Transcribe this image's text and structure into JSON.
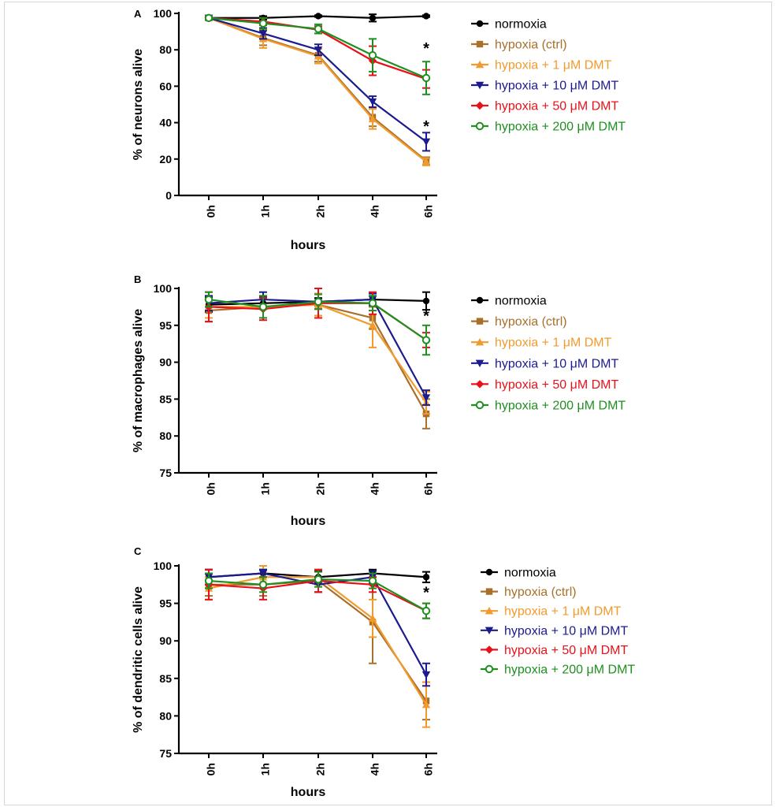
{
  "chart_data": [
    {
      "type": "line",
      "panel_label": "A",
      "ylabel": "% of neurons alive",
      "xlabel": "hours",
      "categories": [
        "0h",
        "1h",
        "2h",
        "4h",
        "6h"
      ],
      "ylim": [
        0,
        100
      ],
      "yticks": [
        0,
        20,
        40,
        60,
        80,
        100
      ],
      "series": [
        {
          "name": "normoxia",
          "color": "#000000",
          "marker": "circle",
          "values": [
            97.5,
            97.5,
            98.5,
            97.5,
            98.5
          ],
          "errors": [
            1.0,
            1.0,
            0.5,
            2.0,
            0.5
          ]
        },
        {
          "name": "hypoxia (ctrl)",
          "color": "#a8702a",
          "marker": "square",
          "values": [
            97.5,
            86.5,
            77.0,
            43.0,
            19.0
          ],
          "errors": [
            1.0,
            4.0,
            3.5,
            5.0,
            2.0
          ]
        },
        {
          "name": "hypoxia + 1 μM DMT",
          "color": "#f39a2c",
          "marker": "triangle-up",
          "values": [
            97.5,
            86.0,
            76.5,
            42.0,
            18.5
          ],
          "errors": [
            1.0,
            5.0,
            4.0,
            5.5,
            2.0
          ]
        },
        {
          "name": "hypoxia + 10 μM DMT",
          "color": "#1b1b8f",
          "marker": "triangle-down",
          "values": [
            97.5,
            89.0,
            80.0,
            51.5,
            29.5
          ],
          "errors": [
            1.0,
            3.0,
            3.0,
            3.0,
            5.0
          ]
        },
        {
          "name": "hypoxia + 50 μM DMT",
          "color": "#e8111a",
          "marker": "diamond",
          "values": [
            97.5,
            95.5,
            91.0,
            74.0,
            64.0
          ],
          "errors": [
            1.0,
            2.0,
            2.0,
            8.0,
            5.0
          ]
        },
        {
          "name": "hypoxia + 200 μM DMT",
          "color": "#1f8f1f",
          "marker": "circle-open",
          "values": [
            97.5,
            94.5,
            91.5,
            77.0,
            64.5
          ],
          "errors": [
            1.0,
            3.0,
            2.5,
            9.0,
            9.0
          ]
        }
      ],
      "annotations": [
        {
          "text": "*",
          "category": "6h",
          "y": 81
        },
        {
          "text": "*",
          "category": "6h",
          "y": 38
        }
      ]
    },
    {
      "type": "line",
      "panel_label": "B",
      "ylabel": "% of macrophages alive",
      "xlabel": "hours",
      "categories": [
        "0h",
        "1h",
        "2h",
        "4h",
        "6h"
      ],
      "ylim": [
        75,
        100
      ],
      "yticks": [
        75,
        80,
        85,
        90,
        95,
        100
      ],
      "series": [
        {
          "name": "normoxia",
          "color": "#000000",
          "marker": "circle",
          "values": [
            97.8,
            98.0,
            98.2,
            98.5,
            98.3
          ],
          "errors": [
            1.0,
            0.8,
            0.5,
            0.5,
            1.2
          ]
        },
        {
          "name": "hypoxia (ctrl)",
          "color": "#a8702a",
          "marker": "square",
          "values": [
            97.0,
            97.5,
            97.8,
            96.0,
            83.0
          ],
          "errors": [
            1.5,
            1.5,
            1.5,
            1.5,
            2.0
          ]
        },
        {
          "name": "hypoxia + 1 μM DMT",
          "color": "#f39a2c",
          "marker": "triangle-up",
          "values": [
            97.5,
            97.5,
            97.8,
            95.0,
            84.5
          ],
          "errors": [
            1.5,
            1.5,
            1.5,
            3.0,
            1.5
          ]
        },
        {
          "name": "hypoxia + 10 μM DMT",
          "color": "#1b1b8f",
          "marker": "triangle-down",
          "values": [
            98.0,
            98.5,
            98.2,
            98.5,
            85.2
          ],
          "errors": [
            1.0,
            1.0,
            1.0,
            0.8,
            1.0
          ]
        },
        {
          "name": "hypoxia + 50 μM DMT",
          "color": "#e8111a",
          "marker": "diamond",
          "values": [
            97.5,
            97.2,
            98.0,
            98.0,
            93.0
          ],
          "errors": [
            2.0,
            1.5,
            2.0,
            1.5,
            1.0
          ]
        },
        {
          "name": "hypoxia + 200 μM DMT",
          "color": "#1f8f1f",
          "marker": "circle-open",
          "values": [
            98.5,
            97.5,
            98.2,
            98.0,
            93.0
          ],
          "errors": [
            1.0,
            1.5,
            1.0,
            1.0,
            2.0
          ]
        }
      ],
      "annotations": [
        {
          "text": "*",
          "category": "6h",
          "y": 96.3
        }
      ]
    },
    {
      "type": "line",
      "panel_label": "C",
      "ylabel": "% of dendritic cells alive",
      "xlabel": "hours",
      "categories": [
        "0h",
        "1h",
        "2h",
        "4h",
        "6h"
      ],
      "ylim": [
        75,
        100
      ],
      "yticks": [
        75,
        80,
        85,
        90,
        95,
        100
      ],
      "series": [
        {
          "name": "normoxia",
          "color": "#000000",
          "marker": "circle",
          "values": [
            98.5,
            99.0,
            98.5,
            99.0,
            98.5
          ],
          "errors": [
            1.0,
            0.5,
            0.8,
            0.5,
            0.7
          ]
        },
        {
          "name": "hypoxia (ctrl)",
          "color": "#a8702a",
          "marker": "square",
          "values": [
            97.5,
            97.5,
            98.0,
            92.5,
            82.0
          ],
          "errors": [
            1.5,
            1.5,
            1.5,
            5.5,
            2.5
          ]
        },
        {
          "name": "hypoxia + 1 μM DMT",
          "color": "#f39a2c",
          "marker": "triangle-up",
          "values": [
            97.0,
            98.5,
            98.5,
            93.0,
            81.5
          ],
          "errors": [
            1.5,
            1.5,
            1.0,
            2.5,
            3.0
          ]
        },
        {
          "name": "hypoxia + 10 μM DMT",
          "color": "#1b1b8f",
          "marker": "triangle-down",
          "values": [
            98.5,
            99.0,
            97.5,
            98.5,
            85.5
          ],
          "errors": [
            1.0,
            0.5,
            1.0,
            0.8,
            1.5
          ]
        },
        {
          "name": "hypoxia + 50 μM DMT",
          "color": "#e8111a",
          "marker": "diamond",
          "values": [
            97.5,
            97.0,
            98.0,
            97.5,
            94.0
          ],
          "errors": [
            2.0,
            1.5,
            1.5,
            1.0,
            1.0
          ]
        },
        {
          "name": "hypoxia + 200 μM DMT",
          "color": "#1f8f1f",
          "marker": "circle-open",
          "values": [
            98.0,
            97.5,
            98.2,
            98.0,
            94.0
          ],
          "errors": [
            1.0,
            1.0,
            1.0,
            1.0,
            1.0
          ]
        }
      ],
      "annotations": [
        {
          "text": "*",
          "category": "6h",
          "y": 96.5
        }
      ]
    }
  ]
}
